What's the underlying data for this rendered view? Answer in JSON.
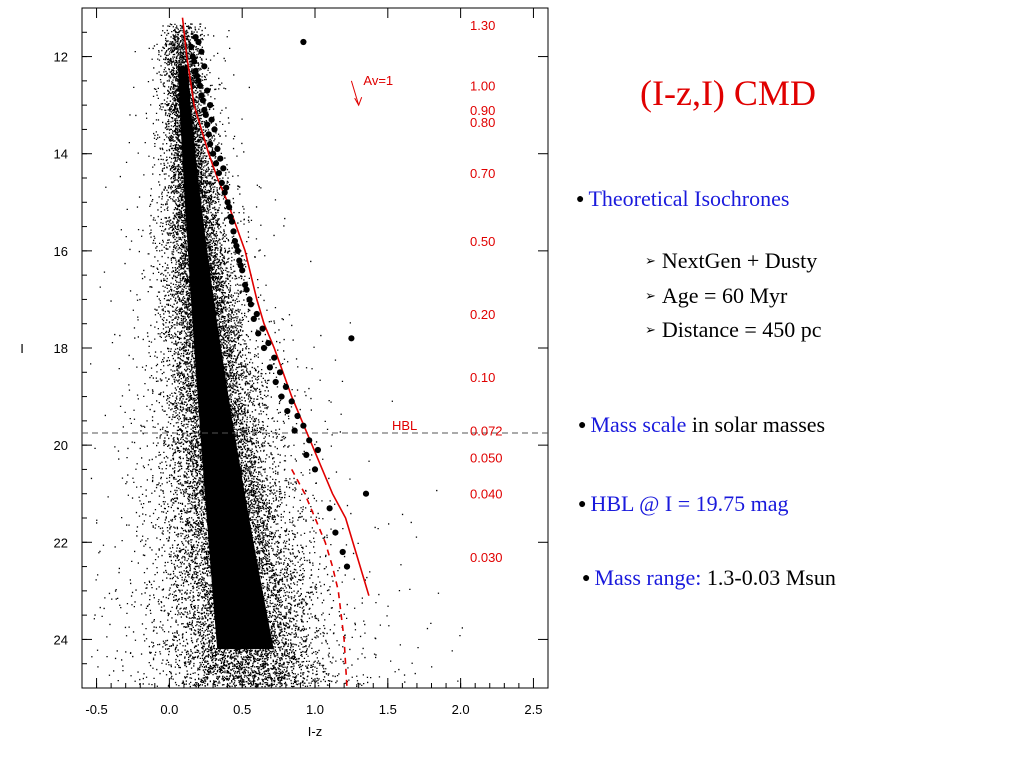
{
  "slide": {
    "title": "(I-z,I) CMD",
    "bullets": [
      {
        "parts": [
          {
            "text": "Theoretical Isochrones",
            "color": "blue"
          }
        ]
      },
      {
        "parts": [
          {
            "text": "Mass scale",
            "color": "blue"
          },
          {
            "text": " in solar masses",
            "color": "black"
          }
        ]
      },
      {
        "parts": [
          {
            "text": "HBL @ ",
            "color": "blue"
          },
          {
            "text": "I = 19.75 mag",
            "color": "blue"
          }
        ]
      },
      {
        "parts": [
          {
            "text": "Mass range:",
            "color": "blue"
          },
          {
            "text": " 1.3-0.03 Msun",
            "color": "black"
          }
        ]
      }
    ],
    "sub_bullets": [
      "NextGen + Dusty",
      "Age = 60 Myr",
      "Distance = 450 pc"
    ]
  },
  "chart_data": {
    "type": "scatter",
    "title": "",
    "xlabel": "I-z",
    "ylabel": "I",
    "xlim": [
      -0.6,
      2.6
    ],
    "ylim": [
      25.0,
      11.0
    ],
    "y_inverted": true,
    "xticks": [
      -0.5,
      0.0,
      0.5,
      1.0,
      1.5,
      2.0,
      2.5
    ],
    "xtick_labels": [
      "-0.5",
      "0.0",
      "0.5",
      "1.0",
      "1.5",
      "2.0",
      "2.5"
    ],
    "yticks": [
      12,
      14,
      16,
      18,
      20,
      22,
      24
    ],
    "ytick_labels": [
      "12",
      "14",
      "16",
      "18",
      "20",
      "22",
      "24"
    ],
    "grid": false,
    "colors": {
      "field": "#000000",
      "isochrone": "#e00000",
      "hbl": "#555555"
    },
    "hbl": {
      "label": "HBL",
      "I": 19.75
    },
    "reddening_vector": {
      "label": "Av=1",
      "from": [
        1.25,
        12.5
      ],
      "to": [
        1.3,
        13.0
      ]
    },
    "isochrone_nextgen": {
      "x": [
        0.09,
        0.12,
        0.17,
        0.22,
        0.27,
        0.33,
        0.4,
        0.46,
        0.52,
        0.56,
        0.6,
        0.65,
        0.72,
        0.78,
        0.84,
        0.91,
        0.98,
        1.05,
        1.12,
        1.21,
        1.28,
        1.37
      ],
      "y": [
        11.2,
        12.0,
        13.0,
        13.5,
        14.0,
        14.5,
        15.0,
        15.5,
        16.0,
        16.5,
        17.0,
        17.5,
        18.0,
        18.5,
        19.0,
        19.5,
        20.0,
        20.5,
        21.0,
        21.5,
        22.2,
        23.1
      ]
    },
    "isochrone_dusty": {
      "x": [
        0.84,
        0.93,
        1.0,
        1.07,
        1.12,
        1.16,
        1.2,
        1.22
      ],
      "y": [
        20.5,
        21.0,
        21.5,
        22.0,
        22.5,
        23.0,
        24.0,
        25.0
      ]
    },
    "members": {
      "x": [
        0.15,
        0.16,
        0.17,
        0.18,
        0.19,
        0.2,
        0.21,
        0.22,
        0.23,
        0.24,
        0.25,
        0.26,
        0.27,
        0.28,
        0.3,
        0.32,
        0.34,
        0.36,
        0.38,
        0.4,
        0.42,
        0.44,
        0.46,
        0.48,
        0.5,
        0.53,
        0.56,
        0.6,
        0.64,
        0.68,
        0.72,
        0.76,
        0.8,
        0.84,
        0.88,
        0.92,
        0.96,
        1.02,
        0.18,
        0.2,
        0.22,
        0.24,
        0.26,
        0.28,
        0.29,
        0.31,
        0.33,
        0.35,
        0.37,
        0.39,
        0.41,
        0.43,
        0.45,
        0.47,
        0.49,
        0.52,
        0.55,
        0.58,
        0.61,
        0.65,
        0.69,
        0.73,
        0.77,
        0.81,
        0.86,
        0.94,
        1.0,
        1.1,
        1.14,
        1.19,
        1.22,
        0.92,
        1.25,
        1.35
      ],
      "y": [
        11.8,
        12.0,
        12.1,
        12.3,
        12.4,
        12.5,
        12.6,
        12.8,
        12.9,
        13.1,
        13.2,
        13.4,
        13.6,
        13.8,
        14.0,
        14.2,
        14.4,
        14.6,
        14.8,
        15.0,
        15.3,
        15.6,
        15.9,
        16.2,
        16.4,
        16.8,
        17.1,
        17.3,
        17.6,
        17.9,
        18.2,
        18.5,
        18.8,
        19.1,
        19.4,
        19.6,
        19.9,
        20.1,
        11.6,
        11.7,
        11.9,
        12.2,
        12.7,
        13.0,
        13.3,
        13.5,
        13.9,
        14.1,
        14.3,
        14.7,
        15.1,
        15.4,
        15.8,
        16.0,
        16.3,
        16.7,
        17.0,
        17.4,
        17.7,
        18.0,
        18.4,
        18.7,
        19.0,
        19.3,
        19.7,
        20.2,
        20.5,
        21.3,
        21.8,
        22.2,
        22.5,
        11.7,
        17.8,
        21.0
      ]
    },
    "mass_scale": {
      "labels": [
        "1.30",
        "1.00",
        "0.90",
        "0.80",
        "0.70",
        "0.50",
        "0.20",
        "0.10",
        "0.072",
        "0.050",
        "0.040",
        "0.030"
      ],
      "I": [
        11.35,
        12.6,
        13.1,
        13.35,
        14.4,
        15.8,
        17.3,
        18.6,
        19.7,
        20.25,
        21.0,
        22.3
      ]
    }
  }
}
